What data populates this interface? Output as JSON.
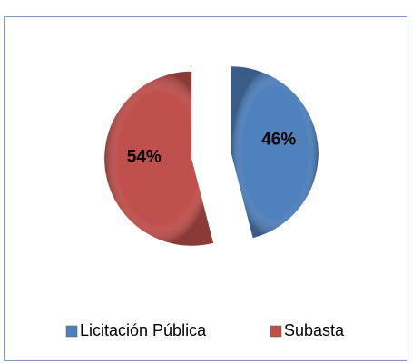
{
  "chart_data": {
    "type": "pie",
    "categories": [
      "Licitación Pública",
      "Subasta"
    ],
    "values": [
      46,
      54
    ],
    "value_labels": [
      "46%",
      "54%"
    ],
    "colors": [
      "#4f81bd",
      "#c0504d"
    ],
    "exploded": true,
    "legend": "bottom"
  }
}
